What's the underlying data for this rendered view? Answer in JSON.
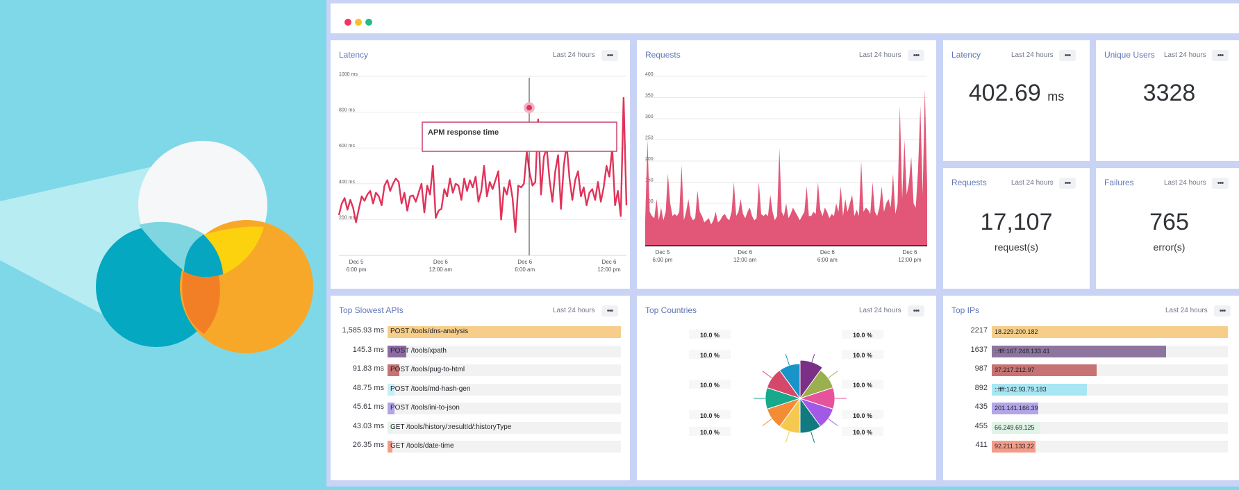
{
  "colors": {
    "background": "#7fd8e8",
    "app_background": "#c9d3f6",
    "accent": "#5f77b6",
    "chart_red": "#e65a7a",
    "window_dots": [
      "#f2355f",
      "#f6c028",
      "#1fbd8d"
    ]
  },
  "panels": {
    "latency_chart": {
      "title": "Latency",
      "range": "Last 24 hours",
      "menu": "•••",
      "tooltip": "APM response time"
    },
    "requests_chart": {
      "title": "Requests",
      "range": "Last 24 hours",
      "menu": "•••"
    },
    "latency_stat": {
      "title": "Latency",
      "range": "Last 24 hours",
      "menu": "•••",
      "value": "402.69",
      "unit": "ms"
    },
    "users_stat": {
      "title": "Unique Users",
      "range": "Last 24 hours",
      "menu": "•••",
      "value": "3328"
    },
    "requests_stat": {
      "title": "Requests",
      "range": "Last 24 hours",
      "menu": "•••",
      "value": "17,107",
      "subtitle": "request(s)"
    },
    "failures_stat": {
      "title": "Failures",
      "range": "Last 24 hours",
      "menu": "•••",
      "value": "765",
      "subtitle": "error(s)"
    },
    "slowest_apis": {
      "title": "Top Slowest APIs",
      "range": "Last 24 hours",
      "menu": "•••"
    },
    "top_countries": {
      "title": "Top Countries",
      "range": "Last 24 hours",
      "menu": "•••"
    },
    "top_ips": {
      "title": "Top IPs",
      "range": "Last 24 hours",
      "menu": "•••"
    }
  },
  "chart_data": [
    {
      "id": "latency",
      "type": "line",
      "title": "Latency",
      "ylim": [
        0,
        1000
      ],
      "y_ticks": [
        "1000 ms",
        "800 ms",
        "600 ms",
        "400 ms",
        "200 ms"
      ],
      "x_ticks": [
        [
          "Dec 5",
          "6:00 pm"
        ],
        [
          "Dec 6",
          "12:00 am"
        ],
        [
          "Dec 6",
          "6:00 am"
        ],
        [
          "Dec 6",
          "12:00 pm"
        ]
      ],
      "tooltip": "APM response time",
      "series": [
        {
          "color": "#e0335a",
          "values": [
            225,
            290,
            320,
            255,
            310,
            265,
            185,
            260,
            330,
            305,
            340,
            360,
            290,
            350,
            330,
            280,
            390,
            420,
            360,
            400,
            430,
            410,
            290,
            350,
            250,
            330,
            335,
            300,
            350,
            400,
            240,
            390,
            340,
            500,
            210,
            250,
            260,
            370,
            330,
            430,
            350,
            400,
            390,
            310,
            430,
            360,
            420,
            380,
            440,
            300,
            360,
            500,
            330,
            410,
            370,
            420,
            470,
            200,
            380,
            340,
            420,
            320,
            130,
            390,
            380,
            400,
            580,
            460,
            390,
            410,
            760,
            340,
            550,
            600,
            420,
            300,
            470,
            560,
            260,
            500,
            620,
            430,
            310,
            420,
            470,
            330,
            380,
            280,
            350,
            370,
            310,
            410,
            300,
            380,
            500,
            440,
            600,
            280,
            360,
            220,
            880,
            280
          ]
        }
      ]
    },
    {
      "id": "requests",
      "type": "area",
      "title": "Requests",
      "ylim": [
        0,
        400
      ],
      "y_ticks": [
        "400",
        "350",
        "300",
        "250",
        "200",
        "150",
        "100",
        "50"
      ],
      "x_ticks": [
        [
          "Dec 5",
          "6:00 pm"
        ],
        [
          "Dec 6",
          "12:00 am"
        ],
        [
          "Dec 6",
          "6:00 am"
        ],
        [
          "Dec 6",
          "12:00 pm"
        ]
      ],
      "series": [
        {
          "color": "#e25677",
          "values": [
            60,
            250,
            80,
            70,
            65,
            110,
            60,
            90,
            60,
            80,
            170,
            100,
            70,
            75,
            70,
            80,
            190,
            60,
            80,
            110,
            70,
            60,
            65,
            130,
            80,
            70,
            55,
            60,
            65,
            50,
            60,
            80,
            55,
            60,
            70,
            75,
            65,
            60,
            80,
            150,
            70,
            80,
            110,
            75,
            65,
            80,
            90,
            70,
            60,
            65,
            150,
            75,
            70,
            75,
            70,
            120,
            80,
            60,
            70,
            230,
            80,
            70,
            100,
            65,
            75,
            90,
            80,
            70,
            60,
            70,
            80,
            140,
            70,
            70,
            80,
            75,
            150,
            85,
            70,
            90,
            80,
            65,
            75,
            70,
            100,
            80,
            140,
            70,
            110,
            80,
            100,
            120,
            70,
            85,
            70,
            200,
            80,
            90,
            85,
            75,
            150,
            80,
            70,
            90,
            140,
            80,
            100,
            110,
            90,
            170,
            75,
            100,
            330,
            110,
            250,
            120,
            150,
            210,
            100,
            90,
            180,
            330,
            120,
            370,
            140
          ]
        }
      ]
    },
    {
      "id": "countries",
      "type": "pie",
      "title": "Top Countries",
      "labels": [
        "10.0 %",
        "10.0 %",
        "10.0 %",
        "10.0 %",
        "10.0 %",
        "10.0 %",
        "10.0 %",
        "10.0 %",
        "10.0 %",
        "10.0 %"
      ],
      "values": [
        10,
        10,
        10,
        10,
        10,
        10,
        10,
        10,
        10,
        10
      ],
      "colors": [
        "#7b2f86",
        "#9aaf4d",
        "#e6539a",
        "#a25ae6",
        "#12797e",
        "#f5c84f",
        "#f48b35",
        "#16a98b",
        "#d6486a",
        "#1894c9"
      ]
    },
    {
      "id": "slowest_apis",
      "type": "bar",
      "title": "Top Slowest APIs",
      "unit": "ms",
      "categories": [
        "POST /tools/dns-analysis",
        "POST /tools/xpath",
        "POST /tools/pug-to-html",
        "POST /tools/md-hash-gen",
        "POST /tools/ini-to-json",
        "GET /tools/history/:resultId/:historyType",
        "GET /tools/date-time"
      ],
      "values": [
        1585.93,
        145.3,
        91.83,
        48.75,
        45.61,
        43.03,
        26.35
      ],
      "value_labels": [
        "1,585.93 ms",
        "145.3 ms",
        "91.83 ms",
        "48.75 ms",
        "45.61 ms",
        "43.03 ms",
        "26.35 ms"
      ],
      "fills": [
        1.0,
        0.08,
        0.05,
        0.03,
        0.03,
        0.02,
        0.02
      ],
      "colors": [
        "#f6ce8a",
        "#8e6aa3",
        "#c77373",
        "#c7eef7",
        "#b3a3ea",
        "#e4f6e8",
        "#f69a86"
      ]
    },
    {
      "id": "top_ips",
      "type": "bar",
      "title": "Top IPs",
      "categories": [
        "18.229.200.182",
        "::ffff:167.248.133.41",
        "37.217.212.97",
        "::ffff:142.93.79.183",
        "201.141.166.39",
        "66.249.69.125",
        "92.211.133.22"
      ],
      "values": [
        2217,
        1637,
        987,
        892,
        435,
        455,
        411
      ],
      "colors": [
        "#f6ce8a",
        "#8e759f",
        "#c77373",
        "#a8e6f3",
        "#b4a5ea",
        "#dff4e6",
        "#f59c89"
      ]
    }
  ]
}
